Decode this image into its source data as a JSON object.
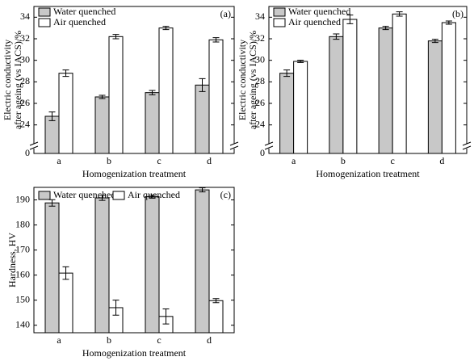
{
  "chart_data": [
    {
      "type": "bar",
      "panel_label": "(a)",
      "ylabel": [
        "Electric conductivity",
        "after ageing (vs IACS)/%"
      ],
      "xlabel": "Homogenization treatment",
      "categories": [
        "a",
        "b",
        "c",
        "d"
      ],
      "series": [
        {
          "name": "Water quenched",
          "color": "#c8c8c8",
          "values": [
            24.8,
            26.6,
            27.0,
            27.7
          ],
          "errors": [
            0.4,
            0.15,
            0.2,
            0.6
          ]
        },
        {
          "name": "Air quenched",
          "color": "#ffffff",
          "values": [
            28.8,
            32.2,
            33.0,
            31.9
          ],
          "errors": [
            0.3,
            0.2,
            0.15,
            0.2
          ]
        }
      ],
      "ylim": [
        0,
        35
      ],
      "axis_break": [
        0,
        23
      ],
      "yticks": [
        0,
        24,
        26,
        28,
        30,
        32,
        34
      ],
      "legend": "upper left"
    },
    {
      "type": "bar",
      "panel_label": "(b)",
      "ylabel": [
        "Electric conductivity",
        "after ageing (vs IACS)/%"
      ],
      "xlabel": "Homogenization treatment",
      "categories": [
        "a",
        "b",
        "c",
        "d"
      ],
      "series": [
        {
          "name": "Water quenched",
          "color": "#c8c8c8",
          "values": [
            28.8,
            32.2,
            33.0,
            31.8
          ],
          "errors": [
            0.3,
            0.25,
            0.15,
            0.15
          ]
        },
        {
          "name": "Air quenched",
          "color": "#ffffff",
          "values": [
            29.9,
            33.8,
            34.3,
            33.5
          ],
          "errors": [
            0.1,
            0.4,
            0.2,
            0.15
          ]
        }
      ],
      "ylim": [
        0,
        35
      ],
      "axis_break": [
        0,
        23
      ],
      "yticks": [
        0,
        24,
        26,
        28,
        30,
        32,
        34
      ],
      "legend": "upper left"
    },
    {
      "type": "bar",
      "panel_label": "(c)",
      "ylabel": [
        "Hardness, HV"
      ],
      "xlabel": "Homogenization treatment",
      "categories": [
        "a",
        "b",
        "c",
        "d"
      ],
      "series": [
        {
          "name": "Water quenched",
          "color": "#c8c8c8",
          "values": [
            188.8,
            190.8,
            191.3,
            194.0
          ],
          "errors": [
            1.3,
            1.0,
            0.6,
            0.8
          ]
        },
        {
          "name": "Air quenched",
          "color": "#ffffff",
          "values": [
            160.8,
            147.0,
            143.5,
            149.8
          ],
          "errors": [
            2.5,
            3.0,
            3.0,
            0.8
          ]
        }
      ],
      "ylim": [
        137,
        195
      ],
      "yticks": [
        140,
        150,
        160,
        170,
        180,
        190
      ],
      "legend": "upper left"
    }
  ]
}
